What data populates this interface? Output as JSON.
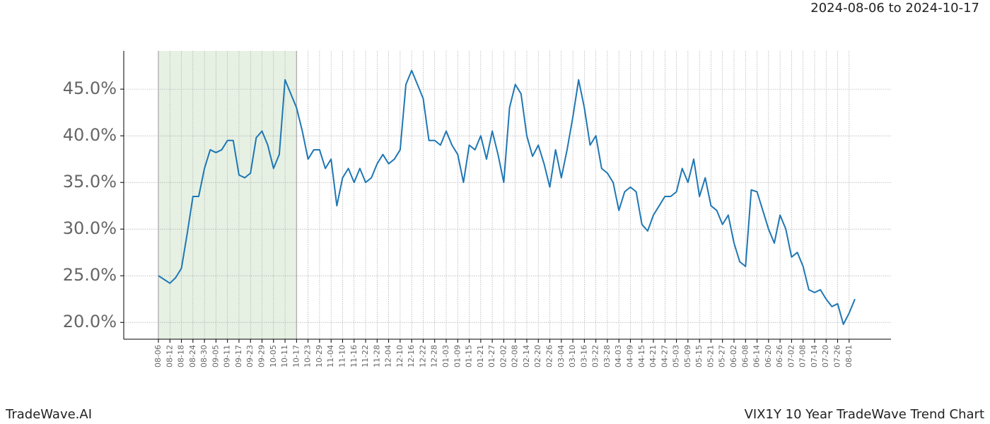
{
  "chart_data": {
    "type": "line",
    "title": "2024-08-06 to 2024-10-17",
    "footer_left": "TradeWave.AI",
    "footer_right": "VIX1Y 10 Year TradeWave Trend Chart",
    "highlight_range": [
      "08-06",
      "10-17"
    ],
    "highlight_color": "#e6f1e4",
    "grid": true,
    "categories": [
      "08-06",
      null,
      "08-12",
      null,
      "08-18",
      null,
      "08-24",
      null,
      "08-30",
      null,
      "09-05",
      null,
      "09-11",
      null,
      "09-17",
      null,
      "09-23",
      null,
      "09-29",
      null,
      "10-05",
      null,
      "10-11",
      null,
      "10-17",
      null,
      "10-23",
      null,
      "10-29",
      null,
      "11-04",
      null,
      "11-10",
      null,
      "11-16",
      null,
      "11-22",
      null,
      "11-28",
      null,
      "12-04",
      null,
      "12-10",
      null,
      "12-16",
      null,
      "12-22",
      null,
      "12-28",
      null,
      "01-03",
      null,
      "01-09",
      null,
      "01-15",
      null,
      "01-21",
      null,
      "01-27",
      null,
      "02-02",
      null,
      "02-08",
      null,
      "02-14",
      null,
      "02-20",
      null,
      "02-26",
      null,
      "03-04",
      null,
      "03-10",
      null,
      "03-16",
      null,
      "03-22",
      null,
      "03-28",
      null,
      "04-03",
      null,
      "04-09",
      null,
      "04-15",
      null,
      "04-21",
      null,
      "04-27",
      null,
      "05-03",
      null,
      "05-09",
      null,
      "05-15",
      null,
      "05-21",
      null,
      "05-27",
      null,
      "06-02",
      null,
      "06-08",
      null,
      "06-14",
      null,
      "06-20",
      null,
      "06-26",
      null,
      "07-02",
      null,
      "07-08",
      null,
      "07-14",
      null,
      "07-20",
      null,
      "07-26",
      null,
      "08-01",
      null
    ],
    "series": [
      {
        "name": "VIX1Y",
        "color": "#1f77b4",
        "values": [
          25.0,
          24.6,
          24.2,
          24.8,
          25.8,
          29.5,
          33.5,
          33.5,
          36.5,
          38.5,
          38.2,
          38.5,
          39.5,
          39.5,
          35.8,
          35.5,
          36.0,
          39.8,
          40.5,
          39.0,
          36.5,
          38.0,
          46.0,
          44.5,
          43.0,
          40.5,
          37.5,
          38.5,
          38.5,
          36.5,
          37.5,
          32.5,
          35.5,
          36.5,
          35.0,
          36.5,
          35.0,
          35.5,
          37.0,
          38.0,
          37.0,
          37.5,
          38.5,
          45.5,
          47.0,
          45.5,
          44.0,
          39.5,
          39.5,
          39.0,
          40.5,
          39.0,
          38.0,
          35.0,
          39.0,
          38.5,
          40.0,
          37.5,
          40.5,
          38.0,
          35.0,
          43.0,
          45.5,
          44.5,
          40.0,
          37.8,
          39.0,
          37.0,
          34.5,
          38.5,
          35.5,
          38.5,
          42.0,
          46.0,
          43.0,
          39.0,
          40.0,
          36.5,
          36.0,
          35.0,
          32.0,
          34.0,
          34.5,
          34.0,
          30.5,
          29.8,
          31.5,
          32.5,
          33.5,
          33.5,
          34.0,
          36.5,
          35.0,
          37.5,
          33.5,
          35.5,
          32.5,
          32.0,
          30.5,
          31.5,
          28.5,
          26.5,
          26.0,
          34.2,
          34.0,
          32.0,
          30.0,
          28.5,
          31.5,
          30.0,
          27.0,
          27.5,
          26.0,
          23.5,
          23.2,
          23.5,
          22.5,
          21.7,
          22.0,
          19.8,
          21.0,
          22.5
        ]
      }
    ],
    "ylim": [
      18.2,
      49.1
    ],
    "yticks": [
      {
        "value": 20,
        "label": "20.0%"
      },
      {
        "value": 25,
        "label": "25.0%"
      },
      {
        "value": 30,
        "label": "30.0%"
      },
      {
        "value": 35,
        "label": "35.0%"
      },
      {
        "value": 40,
        "label": "40.0%"
      },
      {
        "value": 45,
        "label": "45.0%"
      }
    ]
  }
}
